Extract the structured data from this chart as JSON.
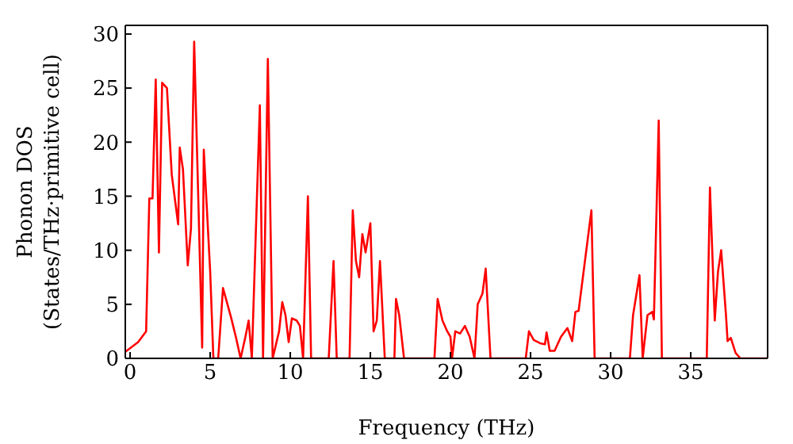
{
  "chart_data": {
    "type": "line",
    "xlabel": "Frequency (THz)",
    "ylabel": "Phonon DOS\n(States/THz·primitive cell)",
    "x": [
      -0.3,
      0.5,
      1.0,
      1.2,
      1.4,
      1.6,
      1.8,
      2.0,
      2.3,
      2.6,
      3.0,
      3.1,
      3.3,
      3.6,
      3.8,
      4.0,
      4.5,
      4.6,
      5.0,
      5.2,
      5.5,
      5.8,
      6.3,
      6.6,
      6.9,
      7.2,
      7.4,
      7.6,
      8.1,
      8.3,
      8.6,
      8.9,
      9.3,
      9.5,
      9.7,
      9.9,
      10.1,
      10.4,
      10.6,
      10.8,
      11.1,
      11.3,
      12.4,
      12.7,
      12.9,
      13.7,
      13.9,
      14.1,
      14.3,
      14.5,
      14.7,
      15.0,
      15.2,
      15.4,
      15.6,
      15.9,
      16.5,
      16.6,
      16.8,
      17.1,
      19.0,
      19.2,
      19.5,
      19.8,
      20.0,
      20.1,
      20.3,
      20.6,
      20.9,
      21.2,
      21.5,
      21.7,
      22.0,
      22.2,
      22.5,
      24.7,
      24.9,
      25.2,
      25.6,
      25.9,
      26.0,
      26.2,
      26.5,
      26.9,
      27.3,
      27.6,
      27.8,
      28.0,
      28.8,
      29.0,
      31.2,
      31.4,
      31.8,
      32.0,
      32.3,
      32.6,
      32.7,
      33.0,
      33.2,
      36.0,
      36.2,
      36.5,
      36.7,
      36.9,
      37.2,
      37.3,
      37.5,
      37.8,
      38.1,
      39.8
    ],
    "series": [
      {
        "color": "#ff0000",
        "values": [
          0.6,
          1.5,
          2.5,
          14.8,
          14.8,
          25.8,
          9.8,
          25.5,
          25,
          17,
          12.4,
          19.5,
          17.5,
          8.6,
          12,
          29.3,
          1,
          19.3,
          8,
          0,
          0,
          6.5,
          3.8,
          2,
          0,
          2,
          3.5,
          0,
          23.4,
          0,
          27.7,
          0,
          2.5,
          5.2,
          4,
          1.5,
          3.7,
          3.5,
          3,
          0,
          15,
          0,
          0,
          9,
          0,
          0,
          13.7,
          9,
          7.5,
          11.5,
          9.8,
          12.5,
          2.5,
          3.5,
          9,
          0,
          0,
          5.5,
          4,
          0,
          0,
          5.5,
          3.5,
          2.5,
          2,
          0,
          2.5,
          2.3,
          3,
          2,
          0,
          5,
          6,
          8.3,
          0,
          0,
          2.5,
          1.7,
          1.4,
          1.3,
          2.4,
          0.7,
          0.7,
          2,
          2.8,
          1.6,
          4.3,
          4.4,
          13.7,
          0,
          0,
          4,
          7.7,
          0,
          4,
          4.3,
          3.6,
          22,
          0,
          0,
          15.8,
          3.5,
          8,
          10,
          4,
          1.6,
          1.9,
          0.5,
          0,
          0
        ]
      }
    ],
    "xlim": [
      -0.3,
      39.8
    ],
    "ylim": [
      0,
      30.8
    ],
    "xticks": [
      0,
      5,
      10,
      15,
      20,
      25,
      30,
      35
    ],
    "yticks": [
      0,
      5,
      10,
      15,
      20,
      25,
      30
    ],
    "grid": false,
    "legend": false,
    "marker": "none",
    "line_style": "solid"
  }
}
